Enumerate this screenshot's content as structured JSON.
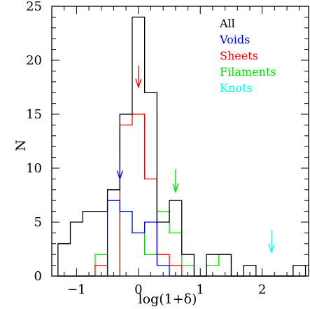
{
  "chart_data": {
    "type": "histogram",
    "xlabel": "log(1+δ)",
    "ylabel": "N",
    "xlim": [
      -1.4,
      2.75
    ],
    "ylim": [
      0,
      25
    ],
    "x_major_ticks": [
      -1,
      0,
      1,
      2
    ],
    "x_tick_labels": [
      "−1",
      "0",
      "1",
      "2"
    ],
    "y_major_ticks": [
      0,
      5,
      10,
      15,
      20,
      25
    ],
    "y_tick_labels": [
      "0",
      "5",
      "10",
      "15",
      "20",
      "25"
    ],
    "x_minor_step": 0.2,
    "y_minor_step": 1,
    "bin_edges": [
      -1.3,
      -1.1,
      -0.9,
      -0.7,
      -0.5,
      -0.3,
      -0.1,
      0.1,
      0.3,
      0.5,
      0.7,
      0.9,
      1.1,
      1.3,
      1.5,
      1.7,
      1.9,
      2.1,
      2.3,
      2.5,
      2.7
    ],
    "legend_position": "top-right",
    "series": [
      {
        "name": "All",
        "color": "#000000",
        "values": [
          3,
          5,
          6,
          6,
          8,
          15,
          24,
          17,
          5,
          7,
          2,
          0,
          2,
          2,
          0,
          1,
          0,
          0,
          0,
          1
        ]
      },
      {
        "name": "Voids",
        "color": "#0000ff",
        "values": [
          0,
          0,
          0,
          0,
          7,
          6,
          4,
          5,
          1,
          0,
          0,
          0,
          0,
          0,
          0,
          0,
          0,
          0,
          0,
          0
        ]
      },
      {
        "name": "Sheets",
        "color": "#ff0000",
        "values": [
          0,
          0,
          0,
          1,
          0,
          14,
          15,
          9,
          2,
          1,
          0,
          0,
          0,
          0,
          0,
          0,
          0,
          0,
          0,
          0
        ]
      },
      {
        "name": "Filaments",
        "color": "#00dd00",
        "values": [
          0,
          0,
          0,
          2,
          0,
          6,
          4,
          2,
          6,
          4,
          1,
          0,
          1,
          2,
          0,
          0,
          0,
          0,
          0,
          0
        ]
      },
      {
        "name": "Knots",
        "color": "#00ffff",
        "values": [
          0,
          0,
          0,
          0,
          0,
          0,
          0,
          0,
          0,
          0,
          0,
          0,
          0,
          0,
          0,
          0,
          0,
          0,
          0,
          1
        ]
      }
    ],
    "arrows": [
      {
        "series": "Voids",
        "x": -0.3,
        "tip_y": 9,
        "tail_y": 11
      },
      {
        "series": "Sheets",
        "x": 0.0,
        "tip_y": 17.5,
        "tail_y": 19.5
      },
      {
        "series": "Filaments",
        "x": 0.6,
        "tip_y": 7.8,
        "tail_y": 9.9
      },
      {
        "series": "Knots",
        "x": 2.15,
        "tip_y": 2.2,
        "tail_y": 4.3
      }
    ]
  }
}
